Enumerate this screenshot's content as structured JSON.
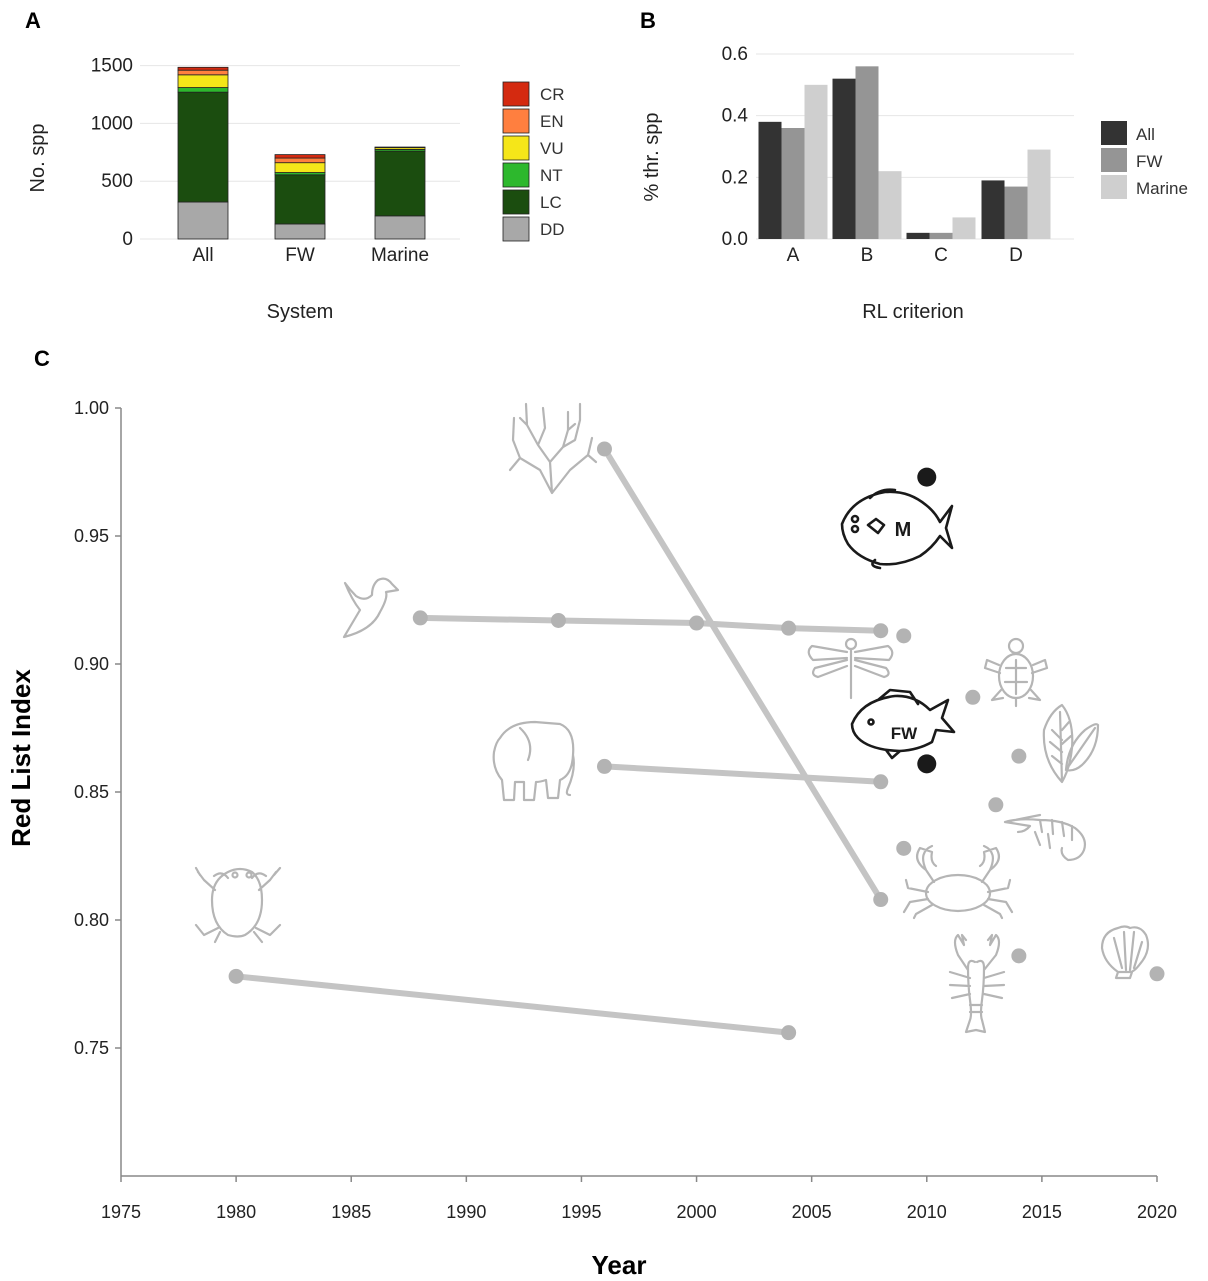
{
  "panels": {
    "a": {
      "letter": "A"
    },
    "b": {
      "letter": "B"
    },
    "c": {
      "letter": "C"
    }
  },
  "chart_data": [
    {
      "id": "A",
      "type": "bar",
      "stacked": true,
      "categories": [
        "All",
        "FW",
        "Marine"
      ],
      "xlabel": "System",
      "ylabel": "No. spp",
      "ylim": [
        0,
        1600
      ],
      "yticks": [
        0,
        500,
        1000,
        1500
      ],
      "legend_position": "right",
      "grid": true,
      "series": [
        {
          "name": "DD",
          "color": "#a8a8a8",
          "values": [
            320,
            130,
            200
          ]
        },
        {
          "name": "LC",
          "color": "#1b4d0f",
          "values": [
            950,
            425,
            560
          ]
        },
        {
          "name": "NT",
          "color": "#2db82d",
          "values": [
            40,
            20,
            15
          ]
        },
        {
          "name": "VU",
          "color": "#f5e619",
          "values": [
            110,
            85,
            15
          ]
        },
        {
          "name": "EN",
          "color": "#ff7f3f",
          "values": [
            40,
            40,
            3
          ]
        },
        {
          "name": "CR",
          "color": "#d42a10",
          "values": [
            25,
            30,
            2
          ]
        }
      ]
    },
    {
      "id": "B",
      "type": "bar",
      "grouped": true,
      "categories": [
        "A",
        "B",
        "C",
        "D"
      ],
      "xlabel": "RL criterion",
      "ylabel": "% thr. spp",
      "ylim": [
        0,
        0.6
      ],
      "yticks": [
        0.0,
        0.2,
        0.4,
        0.6
      ],
      "ytick_labels": [
        "0.0",
        "0.2",
        "0.4",
        "0.6"
      ],
      "legend_position": "right",
      "grid": true,
      "series": [
        {
          "name": "All",
          "color": "#333333",
          "values": [
            0.38,
            0.52,
            0.02,
            0.19
          ]
        },
        {
          "name": "FW",
          "color": "#959595",
          "values": [
            0.36,
            0.56,
            0.02,
            0.17
          ]
        },
        {
          "name": "Marine",
          "color": "#cfcfcf",
          "values": [
            0.5,
            0.22,
            0.07,
            0.29
          ]
        }
      ]
    },
    {
      "id": "C",
      "type": "scatter",
      "xlabel": "Year",
      "ylabel": "Red List Index",
      "xlim": [
        1975,
        2020
      ],
      "ylim": [
        0.7,
        1.0
      ],
      "xticks": [
        1975,
        1980,
        1985,
        1990,
        1995,
        2000,
        2005,
        2010,
        2015,
        2020
      ],
      "yticks": [
        0.75,
        0.8,
        0.85,
        0.9,
        0.95,
        1.0
      ],
      "ytick_labels": [
        "0.75",
        "0.80",
        "0.85",
        "0.90",
        "0.95",
        "1.00"
      ],
      "series": [
        {
          "group": "corals",
          "icon": "coral-icon",
          "points": [
            [
              1996,
              0.984
            ],
            [
              2008,
              0.808
            ]
          ]
        },
        {
          "group": "birds",
          "icon": "bird-icon",
          "points": [
            [
              1988,
              0.918
            ],
            [
              1994,
              0.917
            ],
            [
              2000,
              0.916
            ],
            [
              2004,
              0.914
            ],
            [
              2008,
              0.913
            ]
          ]
        },
        {
          "group": "mammals",
          "icon": "elephant-icon",
          "points": [
            [
              1996,
              0.86
            ],
            [
              2008,
              0.854
            ]
          ]
        },
        {
          "group": "amphibians",
          "icon": "frog-icon",
          "points": [
            [
              1980,
              0.778
            ],
            [
              2004,
              0.756
            ]
          ]
        },
        {
          "group": "dragonflies",
          "icon": "dragonfly-icon",
          "points": [
            [
              2009,
              0.911
            ]
          ]
        },
        {
          "group": "sea turtles",
          "icon": "turtle-icon",
          "points": [
            [
              2012,
              0.887
            ]
          ]
        },
        {
          "group": "plants",
          "icon": "leaves-icon",
          "points": [
            [
              2014,
              0.864
            ]
          ]
        },
        {
          "group": "shrimps",
          "icon": "shrimp-icon",
          "points": [
            [
              2013,
              0.845
            ]
          ]
        },
        {
          "group": "crabs",
          "icon": "crab-icon",
          "points": [
            [
              2009,
              0.828
            ]
          ]
        },
        {
          "group": "crayfish",
          "icon": "crayfish-icon",
          "points": [
            [
              2014,
              0.786
            ]
          ]
        },
        {
          "group": "molluscs",
          "icon": "shell-icon",
          "points": [
            [
              2020,
              0.779
            ]
          ]
        },
        {
          "group": "M",
          "icon": "marine-fish-icon",
          "label": "M",
          "dark": true,
          "points": [
            [
              2010,
              0.973
            ]
          ]
        },
        {
          "group": "FW",
          "icon": "freshwater-fish-icon",
          "label": "FW",
          "dark": true,
          "points": [
            [
              2010,
              0.861
            ]
          ]
        }
      ]
    }
  ],
  "colors": {
    "line_grey": "#c4c4c4",
    "point_grey": "#b3b3b3",
    "point_dark": "#1a1a1a",
    "icon_grey": "#b5b5b5"
  }
}
